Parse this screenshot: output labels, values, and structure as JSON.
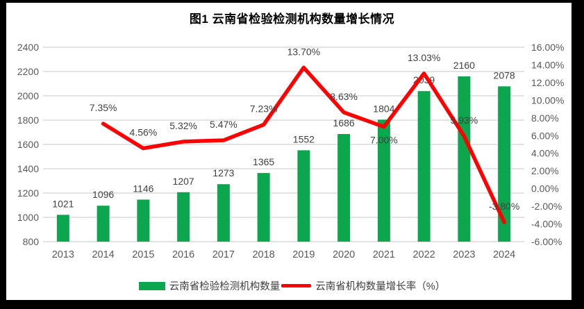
{
  "chart_data": {
    "type": "bar+line",
    "title": "图1 云南省检验检测机构数量增长情况",
    "categories": [
      "2013",
      "2014",
      "2015",
      "2016",
      "2017",
      "2018",
      "2019",
      "2020",
      "2021",
      "2022",
      "2023",
      "2024"
    ],
    "series": [
      {
        "name": "云南省检验检测机构数量",
        "type": "bar",
        "axis": "left",
        "values": [
          1021,
          1096,
          1146,
          1207,
          1273,
          1365,
          1552,
          1686,
          1804,
          2039,
          2160,
          2078
        ],
        "labels": [
          "1021",
          "1096",
          "1146",
          "1207",
          "1273",
          "1365",
          "1552",
          "1686",
          "1804",
          "2039",
          "2160",
          "2078"
        ]
      },
      {
        "name": "云南省机构数量增长率（%）",
        "type": "line",
        "axis": "right",
        "values": [
          null,
          7.35,
          4.56,
          5.32,
          5.47,
          7.23,
          13.7,
          8.63,
          7.0,
          13.03,
          5.93,
          -3.8
        ],
        "labels": [
          null,
          "7.35%",
          "4.56%",
          "5.32%",
          "5.47%",
          "7.23%",
          "13.70%",
          "8.63%",
          "7.00%",
          "13.03%",
          "5.93%",
          "-3.80%"
        ],
        "label_dy": {
          "8": 24
        }
      }
    ],
    "left_axis": {
      "min": 800,
      "max": 2400,
      "tick_values": [
        800,
        1000,
        1200,
        1400,
        1600,
        1800,
        2000,
        2200,
        2400
      ],
      "tick_labels": [
        "800",
        "1000",
        "1200",
        "1400",
        "1600",
        "1800",
        "2000",
        "2200",
        "2400"
      ]
    },
    "right_axis": {
      "min": -6,
      "max": 16,
      "tick_values": [
        -6,
        -4,
        -2,
        0,
        2,
        4,
        6,
        8,
        10,
        12,
        14,
        16
      ],
      "tick_labels": [
        "-6.00%",
        "-4.00%",
        "-2.00%",
        "0.00%",
        "2.00%",
        "4.00%",
        "6.00%",
        "8.00%",
        "10.00%",
        "12.00%",
        "14.00%",
        "16.00%"
      ]
    },
    "grid": "horizontal",
    "legend_position": "bottom",
    "colors": {
      "bar": "#0CA64F",
      "line": "#FF0000",
      "grid": "#DADADA",
      "axis_text": "#595959",
      "label_text": "#404040"
    }
  }
}
